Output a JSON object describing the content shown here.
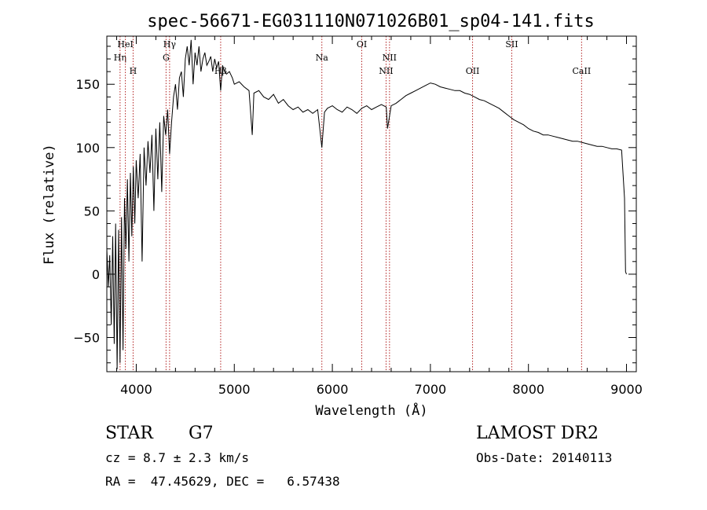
{
  "chart_data": {
    "type": "line",
    "title": "spec-56671-EG031110N071026B01_sp04-141.fits",
    "xlabel": "Wavelength (Å)",
    "ylabel": "Flux (relative)",
    "xlim": [
      3700,
      9100
    ],
    "ylim": [
      -77,
      188
    ],
    "x_ticks": [
      4000,
      5000,
      6000,
      7000,
      8000,
      9000
    ],
    "y_ticks": [
      -50,
      0,
      50,
      100,
      150
    ],
    "grid": false,
    "series": [
      {
        "x": [
          3700,
          3715,
          3730,
          3745,
          3760,
          3775,
          3790,
          3805,
          3820,
          3835,
          3850,
          3865,
          3880,
          3895,
          3910,
          3925,
          3940,
          3955,
          3970,
          3985,
          4000,
          4020,
          4040,
          4060,
          4080,
          4100,
          4120,
          4140,
          4160,
          4180,
          4200,
          4220,
          4240,
          4260,
          4280,
          4300,
          4320,
          4340,
          4360,
          4380,
          4400,
          4420,
          4440,
          4460,
          4480,
          4500,
          4520,
          4540,
          4560,
          4580,
          4600,
          4620,
          4640,
          4660,
          4680,
          4700,
          4720,
          4740,
          4760,
          4780,
          4800,
          4820,
          4840,
          4861,
          4880,
          4900,
          4920,
          4950,
          4980,
          5000,
          5050,
          5100,
          5150,
          5183,
          5200,
          5250,
          5300,
          5350,
          5400,
          5450,
          5500,
          5550,
          5600,
          5650,
          5700,
          5750,
          5800,
          5850,
          5893,
          5920,
          5950,
          6000,
          6050,
          6100,
          6150,
          6200,
          6250,
          6300,
          6350,
          6400,
          6450,
          6500,
          6550,
          6563,
          6600,
          6650,
          6700,
          6750,
          6800,
          6850,
          6900,
          6950,
          7000,
          7050,
          7100,
          7150,
          7200,
          7250,
          7300,
          7350,
          7400,
          7450,
          7500,
          7550,
          7600,
          7650,
          7700,
          7750,
          7800,
          7850,
          7900,
          7950,
          8000,
          8050,
          8100,
          8150,
          8200,
          8250,
          8300,
          8350,
          8400,
          8450,
          8500,
          8550,
          8600,
          8650,
          8700,
          8750,
          8800,
          8850,
          8900,
          8950,
          8980,
          8990,
          9000
        ],
        "y": [
          20,
          -10,
          15,
          -40,
          30,
          -55,
          40,
          -75,
          35,
          -70,
          45,
          -60,
          60,
          20,
          75,
          10,
          80,
          30,
          85,
          40,
          90,
          60,
          95,
          10,
          100,
          70,
          105,
          80,
          110,
          50,
          115,
          75,
          120,
          65,
          125,
          110,
          130,
          95,
          120,
          140,
          150,
          130,
          155,
          160,
          140,
          170,
          180,
          165,
          185,
          150,
          175,
          165,
          180,
          160,
          170,
          175,
          165,
          168,
          172,
          160,
          170,
          163,
          168,
          145,
          165,
          160,
          158,
          160,
          155,
          150,
          152,
          148,
          145,
          110,
          143,
          145,
          140,
          138,
          142,
          135,
          138,
          133,
          130,
          132,
          128,
          130,
          127,
          130,
          100,
          128,
          131,
          133,
          130,
          128,
          132,
          130,
          127,
          131,
          133,
          130,
          132,
          134,
          132,
          115,
          133,
          135,
          138,
          141,
          143,
          145,
          147,
          149,
          151,
          150,
          148,
          147,
          146,
          145,
          145,
          143,
          142,
          140,
          138,
          137,
          135,
          133,
          131,
          128,
          125,
          122,
          120,
          118,
          115,
          113,
          112,
          110,
          110,
          109,
          108,
          107,
          106,
          105,
          105,
          104,
          103,
          102,
          101,
          101,
          100,
          99,
          99,
          98,
          60,
          2,
          0
        ]
      }
    ],
    "line_markers": [
      {
        "x": 3835,
        "row": 1,
        "label": "Hη"
      },
      {
        "x": 3889,
        "row": 0,
        "label": "HeI"
      },
      {
        "x": 3968,
        "row": 2,
        "label": "H"
      },
      {
        "x": 4304,
        "row": 1,
        "label": "G"
      },
      {
        "x": 4340,
        "row": 0,
        "label": "Hγ"
      },
      {
        "x": 4861,
        "row": 2,
        "label": "Hβ"
      },
      {
        "x": 5893,
        "row": 1,
        "label": "Na"
      },
      {
        "x": 6300,
        "row": 0,
        "label": "OI"
      },
      {
        "x": 6548,
        "row": 2,
        "label": "NII"
      },
      {
        "x": 6583,
        "row": 1,
        "label": "NII"
      },
      {
        "x": 7430,
        "row": 2,
        "label": "OII"
      },
      {
        "x": 7830,
        "row": 0,
        "label": "SII"
      },
      {
        "x": 8542,
        "row": 2,
        "label": "CaII"
      }
    ],
    "marker_color": "#b22222"
  },
  "info": {
    "class": "STAR",
    "subclass": "G7",
    "survey": "LAMOST DR2",
    "cz_line": "cz = 8.7 ± 2.3 km/s",
    "obs_date_line": "Obs-Date: 20140113",
    "coords_line": "RA =  47.45629, DEC =   6.57438"
  }
}
